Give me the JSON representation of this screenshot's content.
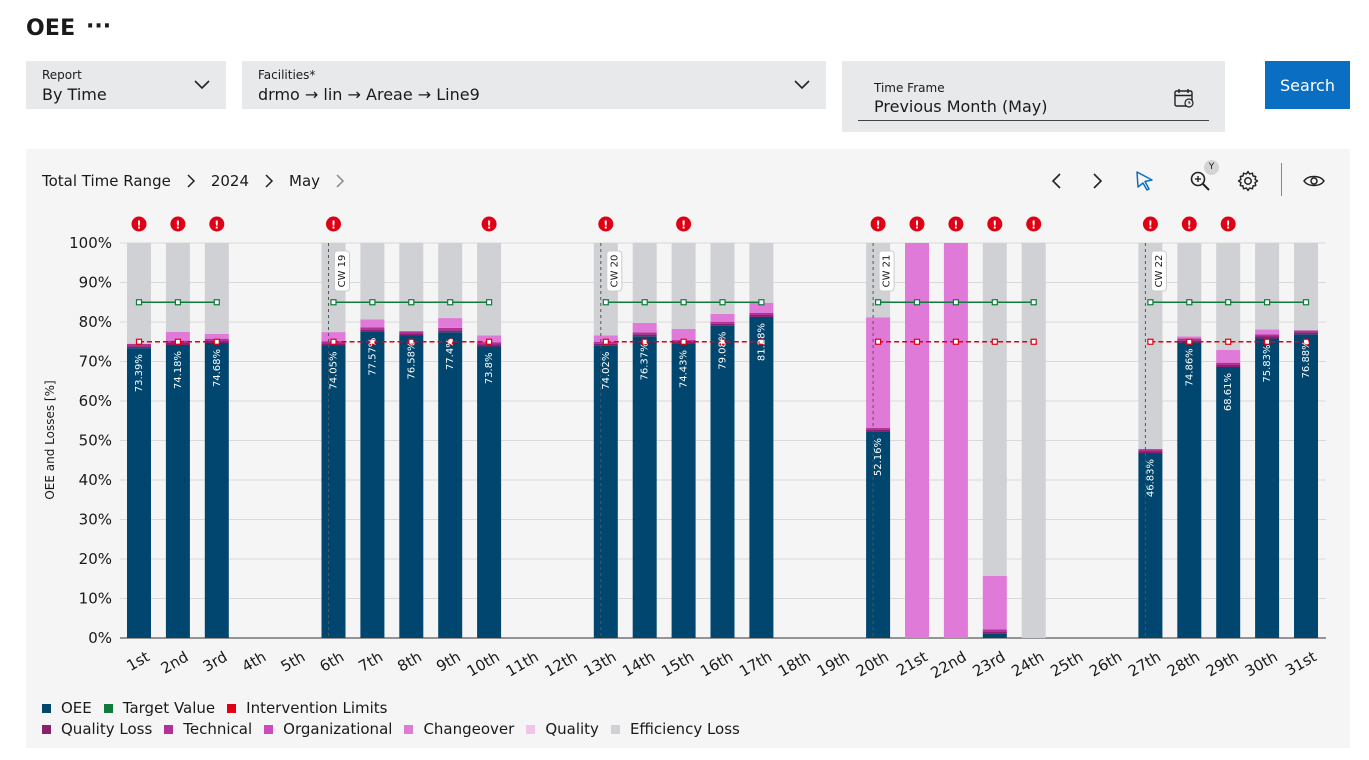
{
  "page": {
    "title": "OEE",
    "more_label": "···"
  },
  "filters": {
    "report": {
      "label": "Report",
      "value": "By Time"
    },
    "facilities": {
      "label": "Facilities*",
      "value": "drmo → lin → Areae → Line9"
    },
    "timeframe": {
      "label": "Time Frame",
      "value": "Previous Month (May)"
    },
    "search_label": "Search"
  },
  "breadcrumb": {
    "items": [
      "Total Time Range",
      "2024",
      "May"
    ]
  },
  "toolbar": {
    "zoom_axis": "Y"
  },
  "legend": {
    "row1": [
      {
        "label": "OEE",
        "color": "#00466e"
      },
      {
        "label": "Target Value",
        "color": "#0f7a3c"
      },
      {
        "label": "Intervention Limits",
        "color": "#e00015"
      }
    ],
    "row2": [
      {
        "label": "Quality Loss",
        "color": "#8a1f6e"
      },
      {
        "label": "Technical",
        "color": "#b3309a"
      },
      {
        "label": "Organizational",
        "color": "#cc49bf"
      },
      {
        "label": "Changeover",
        "color": "#e07ad8"
      },
      {
        "label": "Quality",
        "color": "#f0c3ea"
      },
      {
        "label": "Efficiency Loss",
        "color": "#cfd1d4"
      }
    ]
  },
  "chart_data": {
    "type": "bar",
    "stacked": true,
    "ylabel": "OEE and Losses [%]",
    "ylim": [
      0,
      100
    ],
    "yticks": [
      "0%",
      "10%",
      "20%",
      "30%",
      "40%",
      "50%",
      "60%",
      "70%",
      "80%",
      "90%",
      "100%"
    ],
    "categories": [
      "1st",
      "2nd",
      "3rd",
      "4th",
      "5th",
      "6th",
      "7th",
      "8th",
      "9th",
      "10th",
      "11th",
      "12th",
      "13th",
      "14th",
      "15th",
      "16th",
      "17th",
      "18th",
      "19th",
      "20th",
      "21st",
      "22nd",
      "23rd",
      "24th",
      "25th",
      "26th",
      "27th",
      "28th",
      "29th",
      "30th",
      "31st"
    ],
    "series": [
      {
        "name": "OEE",
        "color": "#00466e",
        "values": [
          73.39,
          74.18,
          74.68,
          null,
          null,
          74.05,
          77.57,
          76.58,
          77.4,
          73.8,
          null,
          null,
          74.02,
          76.37,
          74.43,
          79.08,
          81.28,
          null,
          null,
          52.16,
          0,
          0,
          1.2,
          0,
          null,
          null,
          46.83,
          74.86,
          68.61,
          75.83,
          76.88
        ]
      },
      {
        "name": "Quality Loss",
        "color": "#8a1f6e",
        "values": [
          0.5,
          0.5,
          0.5,
          null,
          null,
          0.5,
          0.5,
          0.5,
          0.5,
          0.5,
          null,
          null,
          0.5,
          0.5,
          0.5,
          0.5,
          0.5,
          null,
          null,
          0.5,
          0,
          0,
          0.5,
          0,
          null,
          null,
          0.5,
          0.5,
          0.5,
          0.5,
          0.5
        ]
      },
      {
        "name": "Technical",
        "color": "#b3309a",
        "values": [
          0.6,
          0.6,
          0.6,
          null,
          null,
          0.6,
          0.6,
          0.6,
          0.6,
          0.6,
          null,
          null,
          0.5,
          0.5,
          0.5,
          0.5,
          0.5,
          null,
          null,
          0.5,
          0,
          0,
          0.5,
          0,
          null,
          null,
          0.5,
          0.5,
          0.6,
          0.5,
          0.5
        ]
      },
      {
        "name": "Organizational",
        "color": "#cc49bf",
        "values": [
          0,
          0,
          0,
          null,
          null,
          0,
          0,
          0,
          0,
          0,
          null,
          null,
          0,
          0,
          0,
          0,
          0,
          null,
          null,
          0,
          0,
          0,
          0,
          0,
          null,
          null,
          0,
          0,
          0,
          0,
          0
        ]
      },
      {
        "name": "Changeover",
        "color": "#e07ad8",
        "values": [
          0,
          2.2,
          1.2,
          null,
          null,
          2.3,
          2.0,
          0,
          2.5,
          1.7,
          null,
          null,
          1.6,
          2.4,
          2.8,
          2.0,
          2.6,
          null,
          null,
          28.0,
          100,
          100,
          13.5,
          0,
          null,
          null,
          0,
          0.5,
          3.2,
          1.3,
          0
        ]
      },
      {
        "name": "Quality",
        "color": "#f0c3ea",
        "values": [
          0,
          0,
          0,
          null,
          null,
          0,
          0,
          0,
          0,
          0,
          null,
          null,
          0,
          0,
          0,
          0,
          0,
          null,
          null,
          0,
          0,
          0,
          0,
          0,
          null,
          null,
          0,
          0,
          0,
          0,
          0
        ]
      },
      {
        "name": "Efficiency Loss",
        "color": "#cfd1d4",
        "values": [
          25.51,
          22.52,
          23.02,
          null,
          null,
          22.55,
          19.33,
          22.32,
          19.0,
          23.4,
          null,
          null,
          23.38,
          20.23,
          21.77,
          17.92,
          15.12,
          null,
          null,
          18.84,
          0,
          0,
          84.3,
          100,
          null,
          null,
          52.17,
          23.64,
          27.09,
          21.87,
          22.12
        ]
      }
    ],
    "oee_labels": [
      "73.39%",
      "74.18%",
      "74.68%",
      null,
      null,
      "74.05%",
      "77.57%",
      "76.58%",
      "77.4%",
      "73.8%",
      null,
      null,
      "74.02%",
      "76.37%",
      "74.43%",
      "79.08%",
      "81.28%",
      null,
      null,
      "52.16%",
      null,
      null,
      null,
      null,
      null,
      null,
      "46.83%",
      "74.86%",
      "68.61%",
      "75.83%",
      "76.88%"
    ],
    "target_value": 85,
    "intervention_limit": 75,
    "line_segments": [
      [
        1,
        3
      ],
      [
        6,
        10
      ],
      [
        13,
        17
      ],
      [
        20,
        24
      ],
      [
        27,
        31
      ]
    ],
    "alert_days": [
      1,
      2,
      3,
      6,
      10,
      13,
      15,
      20,
      21,
      22,
      23,
      24,
      27,
      28,
      29
    ],
    "week_markers": [
      {
        "day": 6,
        "label": "CW 19"
      },
      {
        "day": 13,
        "label": "CW 20"
      },
      {
        "day": 20,
        "label": "CW 21"
      },
      {
        "day": 27,
        "label": "CW 22"
      }
    ]
  }
}
